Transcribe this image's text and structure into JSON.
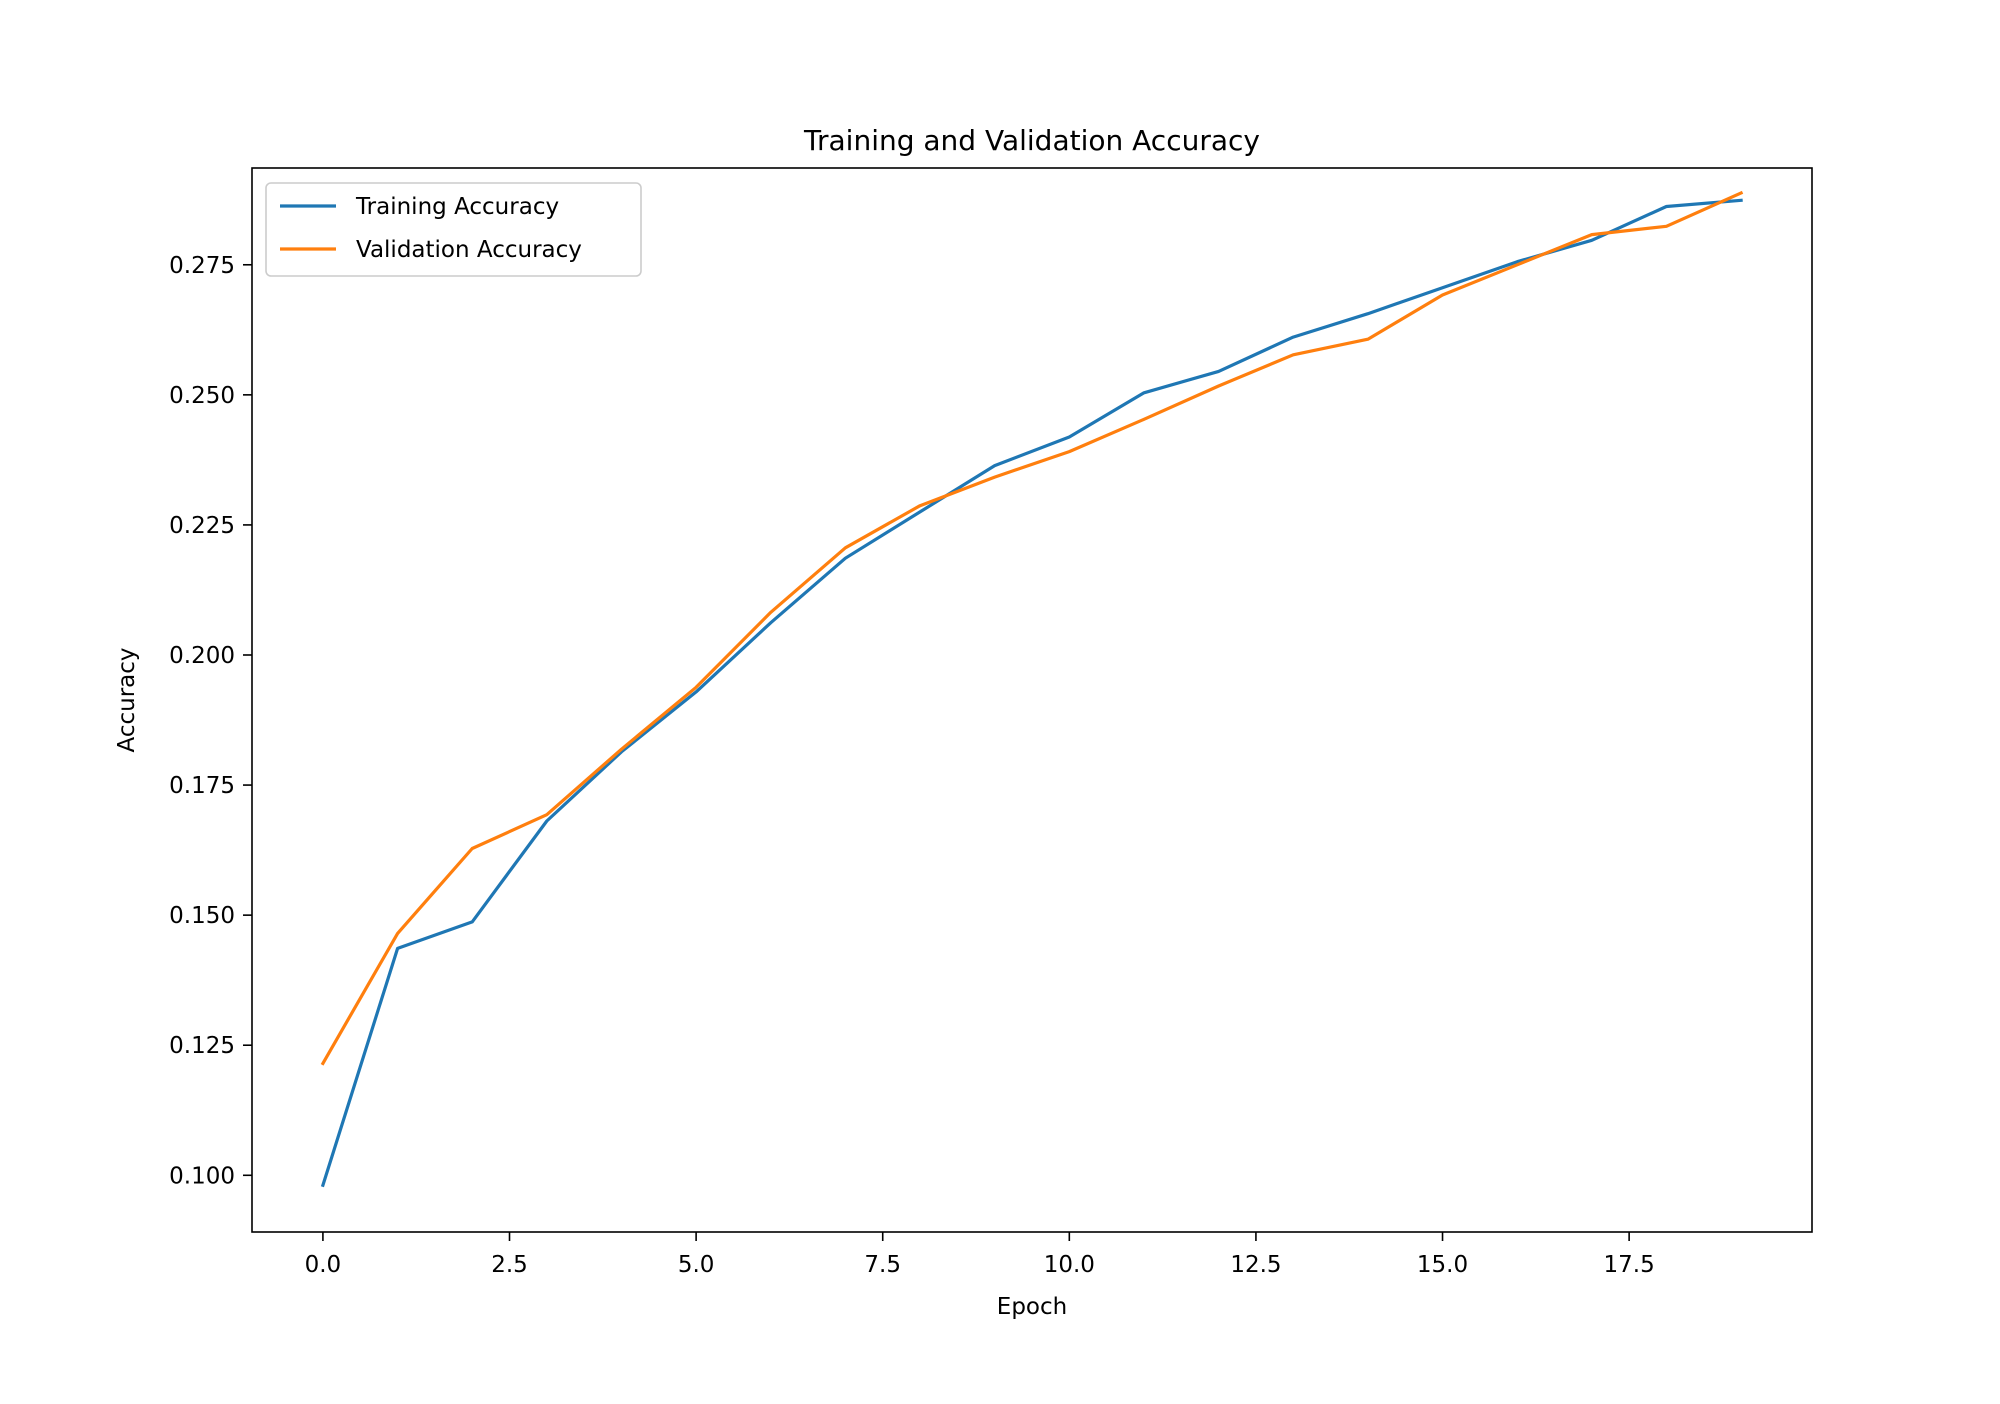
{
  "chart_data": {
    "type": "line",
    "title": "Training and Validation Accuracy",
    "xlabel": "Epoch",
    "ylabel": "Accuracy",
    "xlim": [
      -0.95,
      19.95
    ],
    "ylim": [
      0.0891,
      0.2936
    ],
    "x_ticks": [
      0.0,
      2.5,
      5.0,
      7.5,
      10.0,
      12.5,
      15.0,
      17.5
    ],
    "x_tick_labels": [
      "0.0",
      "2.5",
      "5.0",
      "7.5",
      "10.0",
      "12.5",
      "15.0",
      "17.5"
    ],
    "y_ticks": [
      0.1,
      0.125,
      0.15,
      0.175,
      0.2,
      0.225,
      0.25,
      0.275
    ],
    "y_tick_labels": [
      "0.100",
      "0.125",
      "0.150",
      "0.175",
      "0.200",
      "0.225",
      "0.250",
      "0.275"
    ],
    "grid": false,
    "legend_position": "upper-left",
    "x": [
      0,
      1,
      2,
      3,
      4,
      5,
      6,
      7,
      8,
      9,
      10,
      11,
      12,
      13,
      14,
      15,
      16,
      17,
      18,
      19
    ],
    "series": [
      {
        "name": "Training Accuracy",
        "color": "#1f77b4",
        "values": [
          0.0981,
          0.1436,
          0.1487,
          0.1681,
          0.1814,
          0.1929,
          0.2062,
          0.2186,
          0.2275,
          0.2364,
          0.2419,
          0.2504,
          0.2545,
          0.2611,
          0.2656,
          0.2706,
          0.2756,
          0.2797,
          0.2862,
          0.2874
        ]
      },
      {
        "name": "Validation Accuracy",
        "color": "#ff7f0e",
        "values": [
          0.1215,
          0.1465,
          0.1628,
          0.1693,
          0.1819,
          0.1938,
          0.2082,
          0.2206,
          0.2287,
          0.2342,
          0.2391,
          0.2453,
          0.2517,
          0.2577,
          0.2607,
          0.2692,
          0.275,
          0.2808,
          0.2824,
          0.2888
        ]
      }
    ]
  }
}
